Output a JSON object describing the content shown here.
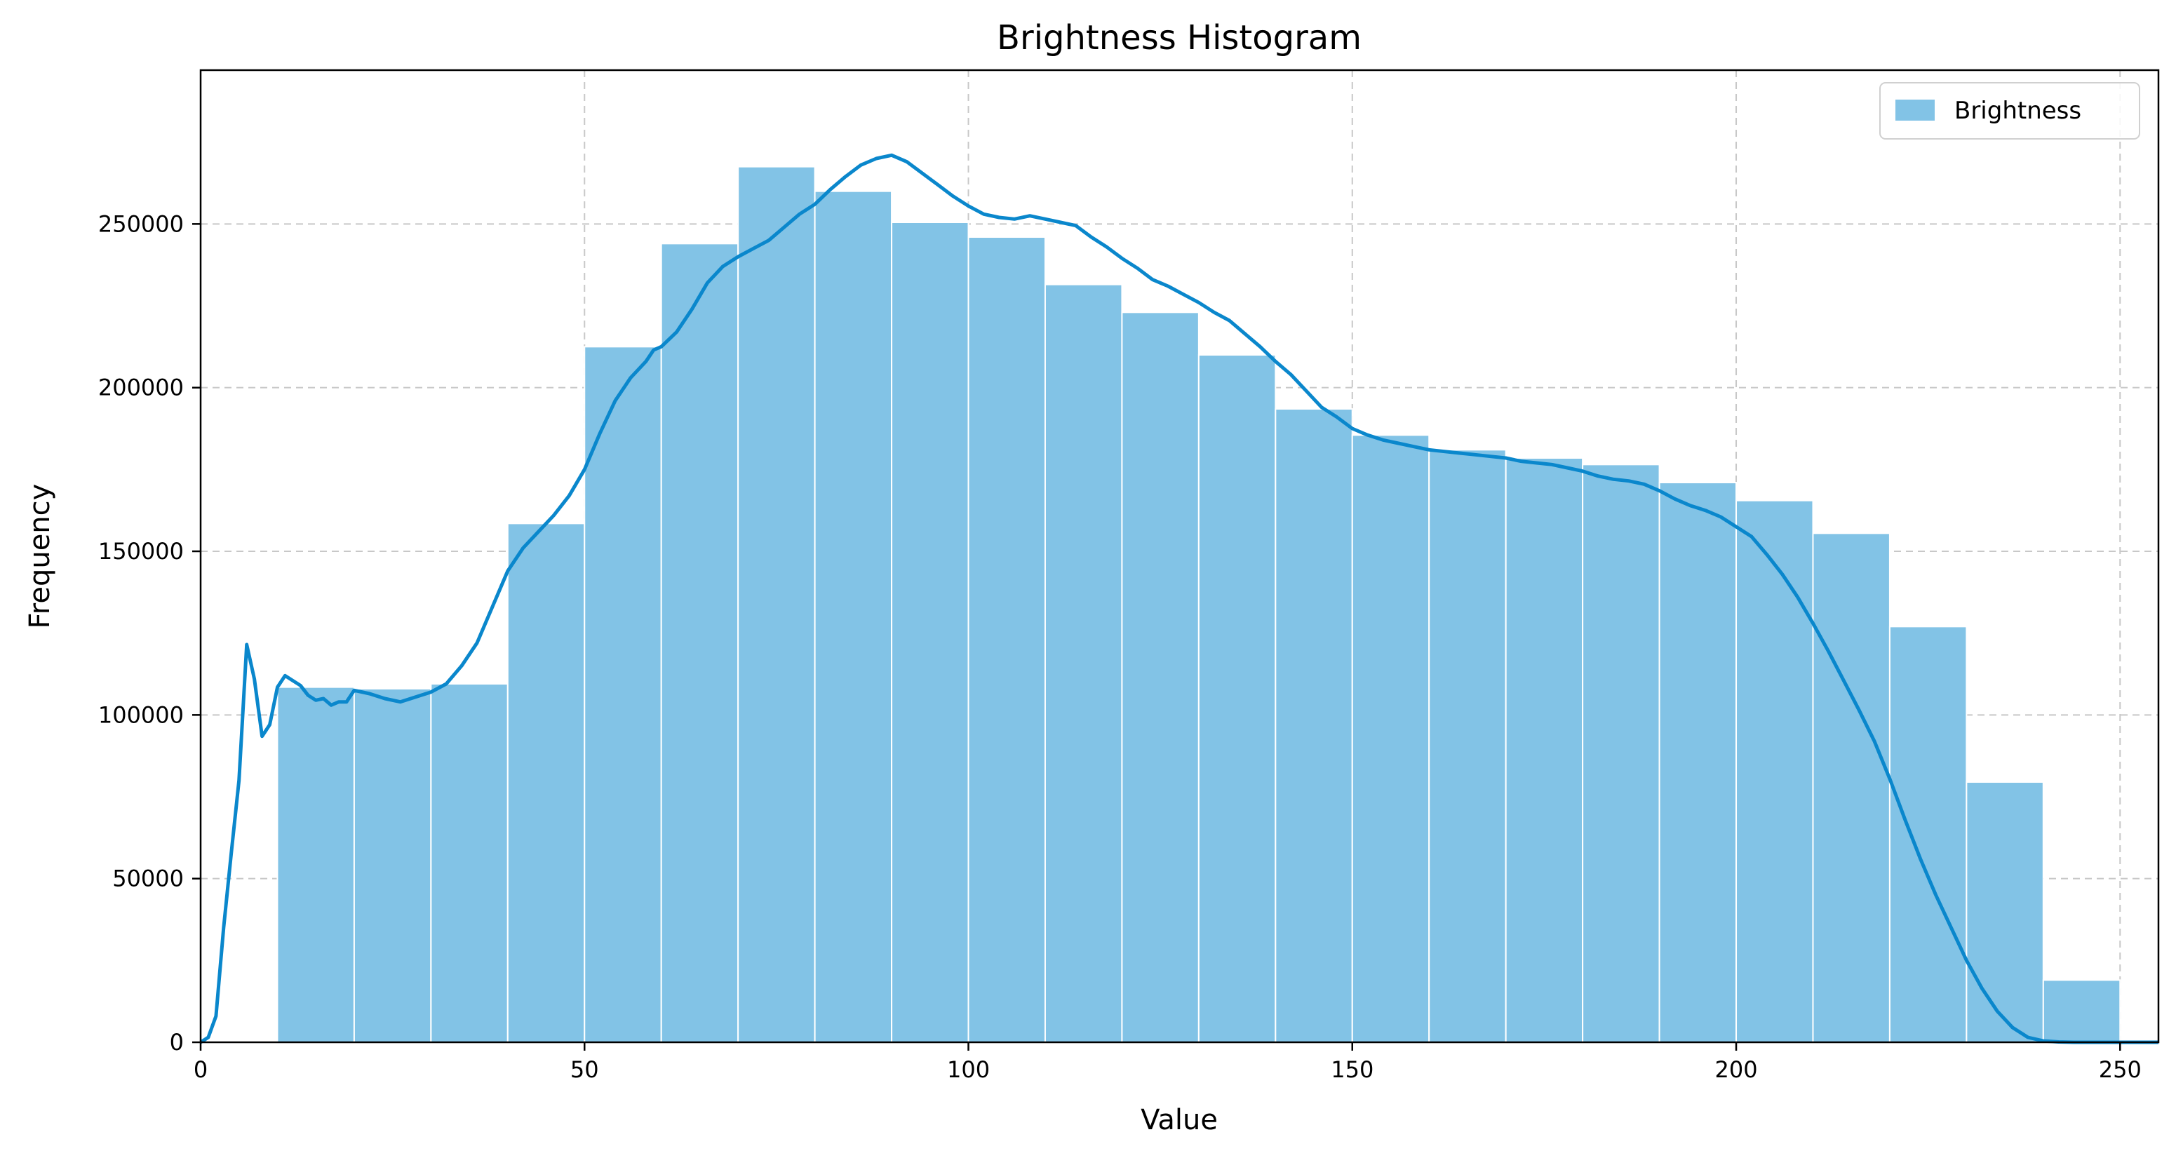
{
  "chart_data": {
    "type": "bar",
    "title": "Brightness Histogram",
    "xlabel": "Value",
    "ylabel": "Frequency",
    "xlim": [
      0,
      255
    ],
    "ylim": [
      0,
      297000
    ],
    "xticks": [
      0,
      50,
      100,
      150,
      200,
      250
    ],
    "yticks": [
      0,
      50000,
      100000,
      150000,
      200000,
      250000
    ],
    "grid": true,
    "legend": {
      "placement": "top-right",
      "label": "Brightness"
    },
    "colors": {
      "bars": "#82c3e6",
      "line": "#0a87cc",
      "grid": "#c8c8c8"
    },
    "bins": [
      {
        "start": 10,
        "end": 20,
        "value": 108500
      },
      {
        "start": 20,
        "end": 30,
        "value": 108000
      },
      {
        "start": 30,
        "end": 40,
        "value": 109500
      },
      {
        "start": 40,
        "end": 50,
        "value": 158500
      },
      {
        "start": 50,
        "end": 60,
        "value": 212500
      },
      {
        "start": 60,
        "end": 70,
        "value": 244000
      },
      {
        "start": 70,
        "end": 80,
        "value": 267500
      },
      {
        "start": 80,
        "end": 90,
        "value": 260000
      },
      {
        "start": 90,
        "end": 100,
        "value": 250500
      },
      {
        "start": 100,
        "end": 110,
        "value": 246000
      },
      {
        "start": 110,
        "end": 120,
        "value": 231500
      },
      {
        "start": 120,
        "end": 130,
        "value": 223000
      },
      {
        "start": 130,
        "end": 140,
        "value": 210000
      },
      {
        "start": 140,
        "end": 150,
        "value": 193500
      },
      {
        "start": 150,
        "end": 160,
        "value": 185500
      },
      {
        "start": 160,
        "end": 170,
        "value": 181000
      },
      {
        "start": 170,
        "end": 180,
        "value": 178500
      },
      {
        "start": 180,
        "end": 190,
        "value": 176500
      },
      {
        "start": 190,
        "end": 200,
        "value": 171000
      },
      {
        "start": 200,
        "end": 210,
        "value": 165500
      },
      {
        "start": 210,
        "end": 220,
        "value": 155500
      },
      {
        "start": 220,
        "end": 230,
        "value": 127000
      },
      {
        "start": 230,
        "end": 240,
        "value": 79500
      },
      {
        "start": 240,
        "end": 250,
        "value": 19000
      }
    ],
    "density_curve": [
      [
        0,
        0
      ],
      [
        1,
        1500
      ],
      [
        2,
        8000
      ],
      [
        3,
        35000
      ],
      [
        4,
        58000
      ],
      [
        5,
        80000
      ],
      [
        6,
        121500
      ],
      [
        7,
        111000
      ],
      [
        8,
        93500
      ],
      [
        9,
        97000
      ],
      [
        10,
        108500
      ],
      [
        11,
        112000
      ],
      [
        12,
        110500
      ],
      [
        13,
        109000
      ],
      [
        14,
        106000
      ],
      [
        15,
        104500
      ],
      [
        16,
        105000
      ],
      [
        17,
        103000
      ],
      [
        18,
        104000
      ],
      [
        19,
        104000
      ],
      [
        20,
        107500
      ],
      [
        22,
        106500
      ],
      [
        24,
        105000
      ],
      [
        26,
        104000
      ],
      [
        28,
        105500
      ],
      [
        30,
        107000
      ],
      [
        32,
        109500
      ],
      [
        34,
        115000
      ],
      [
        36,
        122000
      ],
      [
        38,
        133000
      ],
      [
        40,
        144000
      ],
      [
        42,
        151000
      ],
      [
        44,
        156000
      ],
      [
        46,
        161000
      ],
      [
        48,
        167000
      ],
      [
        50,
        175000
      ],
      [
        52,
        186000
      ],
      [
        54,
        196000
      ],
      [
        56,
        203000
      ],
      [
        58,
        208000
      ],
      [
        59,
        211500
      ],
      [
        60,
        212500
      ],
      [
        62,
        217000
      ],
      [
        64,
        224000
      ],
      [
        66,
        232000
      ],
      [
        68,
        237000
      ],
      [
        70,
        240000
      ],
      [
        72,
        242500
      ],
      [
        74,
        245000
      ],
      [
        76,
        249000
      ],
      [
        78,
        253000
      ],
      [
        80,
        256000
      ],
      [
        82,
        260500
      ],
      [
        84,
        264500
      ],
      [
        86,
        268000
      ],
      [
        88,
        270000
      ],
      [
        90,
        271000
      ],
      [
        92,
        269000
      ],
      [
        94,
        265500
      ],
      [
        96,
        262000
      ],
      [
        98,
        258500
      ],
      [
        100,
        255500
      ],
      [
        102,
        253000
      ],
      [
        104,
        252000
      ],
      [
        106,
        251500
      ],
      [
        108,
        252500
      ],
      [
        110,
        251500
      ],
      [
        112,
        250500
      ],
      [
        114,
        249500
      ],
      [
        116,
        246000
      ],
      [
        118,
        243000
      ],
      [
        120,
        239500
      ],
      [
        122,
        236500
      ],
      [
        124,
        233000
      ],
      [
        126,
        231000
      ],
      [
        128,
        228500
      ],
      [
        130,
        226000
      ],
      [
        132,
        223000
      ],
      [
        134,
        220500
      ],
      [
        136,
        216500
      ],
      [
        138,
        212500
      ],
      [
        140,
        208000
      ],
      [
        142,
        204000
      ],
      [
        144,
        199000
      ],
      [
        146,
        194000
      ],
      [
        148,
        191000
      ],
      [
        150,
        187500
      ],
      [
        152,
        185500
      ],
      [
        154,
        184000
      ],
      [
        156,
        183000
      ],
      [
        158,
        182000
      ],
      [
        160,
        181000
      ],
      [
        162,
        180500
      ],
      [
        164,
        180000
      ],
      [
        166,
        179500
      ],
      [
        168,
        179000
      ],
      [
        170,
        178500
      ],
      [
        172,
        177500
      ],
      [
        174,
        177000
      ],
      [
        176,
        176500
      ],
      [
        178,
        175500
      ],
      [
        180,
        174500
      ],
      [
        182,
        173000
      ],
      [
        184,
        172000
      ],
      [
        186,
        171500
      ],
      [
        188,
        170500
      ],
      [
        190,
        168500
      ],
      [
        192,
        166000
      ],
      [
        194,
        164000
      ],
      [
        196,
        162500
      ],
      [
        198,
        160500
      ],
      [
        200,
        157500
      ],
      [
        202,
        154500
      ],
      [
        204,
        149000
      ],
      [
        206,
        143000
      ],
      [
        208,
        136000
      ],
      [
        210,
        128000
      ],
      [
        212,
        119500
      ],
      [
        214,
        110500
      ],
      [
        216,
        101500
      ],
      [
        218,
        92000
      ],
      [
        220,
        80500
      ],
      [
        222,
        68000
      ],
      [
        224,
        56000
      ],
      [
        226,
        45000
      ],
      [
        228,
        35000
      ],
      [
        230,
        25000
      ],
      [
        232,
        16500
      ],
      [
        234,
        9500
      ],
      [
        236,
        4500
      ],
      [
        238,
        1500
      ],
      [
        240,
        400
      ],
      [
        242,
        100
      ],
      [
        244,
        0
      ],
      [
        246,
        0
      ],
      [
        248,
        0
      ],
      [
        250,
        0
      ],
      [
        252,
        0
      ],
      [
        254,
        0
      ],
      [
        255,
        0
      ]
    ]
  }
}
